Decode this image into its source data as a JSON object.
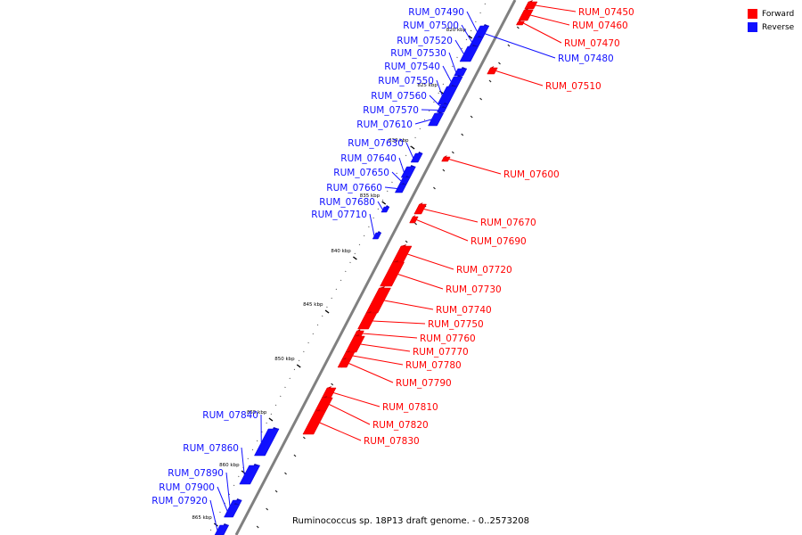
{
  "caption": "Ruminococcus sp. 18P13 draft genome. - 0..2573208",
  "legend": [
    {
      "label": "Forward",
      "color": "#ff0000"
    },
    {
      "label": "Reverse",
      "color": "#1010ff"
    }
  ],
  "colors": {
    "forward": "#ff0000",
    "reverse": "#1010ff",
    "backbone": "#808080"
  },
  "ticks": [
    {
      "label": "820 kbp"
    },
    {
      "label": "825 kbp"
    },
    {
      "label": "830 kbp"
    },
    {
      "label": "835 kbp"
    },
    {
      "label": "840 kbp"
    },
    {
      "label": "845 kbp"
    },
    {
      "label": "850 kbp"
    },
    {
      "label": "855 kbp"
    },
    {
      "label": "860 kbp"
    },
    {
      "label": "865 kbp"
    }
  ],
  "genes": [
    {
      "name": "RUM_07450",
      "strand": "forward"
    },
    {
      "name": "RUM_07460",
      "strand": "forward"
    },
    {
      "name": "RUM_07470",
      "strand": "forward"
    },
    {
      "name": "RUM_07480",
      "strand": "reverse"
    },
    {
      "name": "RUM_07490",
      "strand": "reverse"
    },
    {
      "name": "RUM_07500",
      "strand": "reverse"
    },
    {
      "name": "RUM_07510",
      "strand": "forward"
    },
    {
      "name": "RUM_07520",
      "strand": "reverse"
    },
    {
      "name": "RUM_07530",
      "strand": "reverse"
    },
    {
      "name": "RUM_07540",
      "strand": "reverse"
    },
    {
      "name": "RUM_07550",
      "strand": "reverse"
    },
    {
      "name": "RUM_07560",
      "strand": "reverse"
    },
    {
      "name": "RUM_07570",
      "strand": "reverse"
    },
    {
      "name": "RUM_07600",
      "strand": "forward"
    },
    {
      "name": "RUM_07610",
      "strand": "reverse"
    },
    {
      "name": "RUM_07630",
      "strand": "reverse"
    },
    {
      "name": "RUM_07640",
      "strand": "reverse"
    },
    {
      "name": "RUM_07650",
      "strand": "reverse"
    },
    {
      "name": "RUM_07660",
      "strand": "reverse"
    },
    {
      "name": "RUM_07670",
      "strand": "forward"
    },
    {
      "name": "RUM_07680",
      "strand": "reverse"
    },
    {
      "name": "RUM_07690",
      "strand": "forward"
    },
    {
      "name": "RUM_07710",
      "strand": "reverse"
    },
    {
      "name": "RUM_07720",
      "strand": "forward"
    },
    {
      "name": "RUM_07730",
      "strand": "forward"
    },
    {
      "name": "RUM_07740",
      "strand": "forward"
    },
    {
      "name": "RUM_07750",
      "strand": "forward"
    },
    {
      "name": "RUM_07760",
      "strand": "forward"
    },
    {
      "name": "RUM_07770",
      "strand": "forward"
    },
    {
      "name": "RUM_07780",
      "strand": "forward"
    },
    {
      "name": "RUM_07790",
      "strand": "forward"
    },
    {
      "name": "RUM_07810",
      "strand": "forward"
    },
    {
      "name": "RUM_07820",
      "strand": "forward"
    },
    {
      "name": "RUM_07830",
      "strand": "forward"
    },
    {
      "name": "RUM_07840",
      "strand": "reverse"
    },
    {
      "name": "RUM_07860",
      "strand": "reverse"
    },
    {
      "name": "RUM_07890",
      "strand": "reverse"
    },
    {
      "name": "RUM_07900",
      "strand": "reverse"
    },
    {
      "name": "RUM_07920",
      "strand": "reverse"
    }
  ]
}
